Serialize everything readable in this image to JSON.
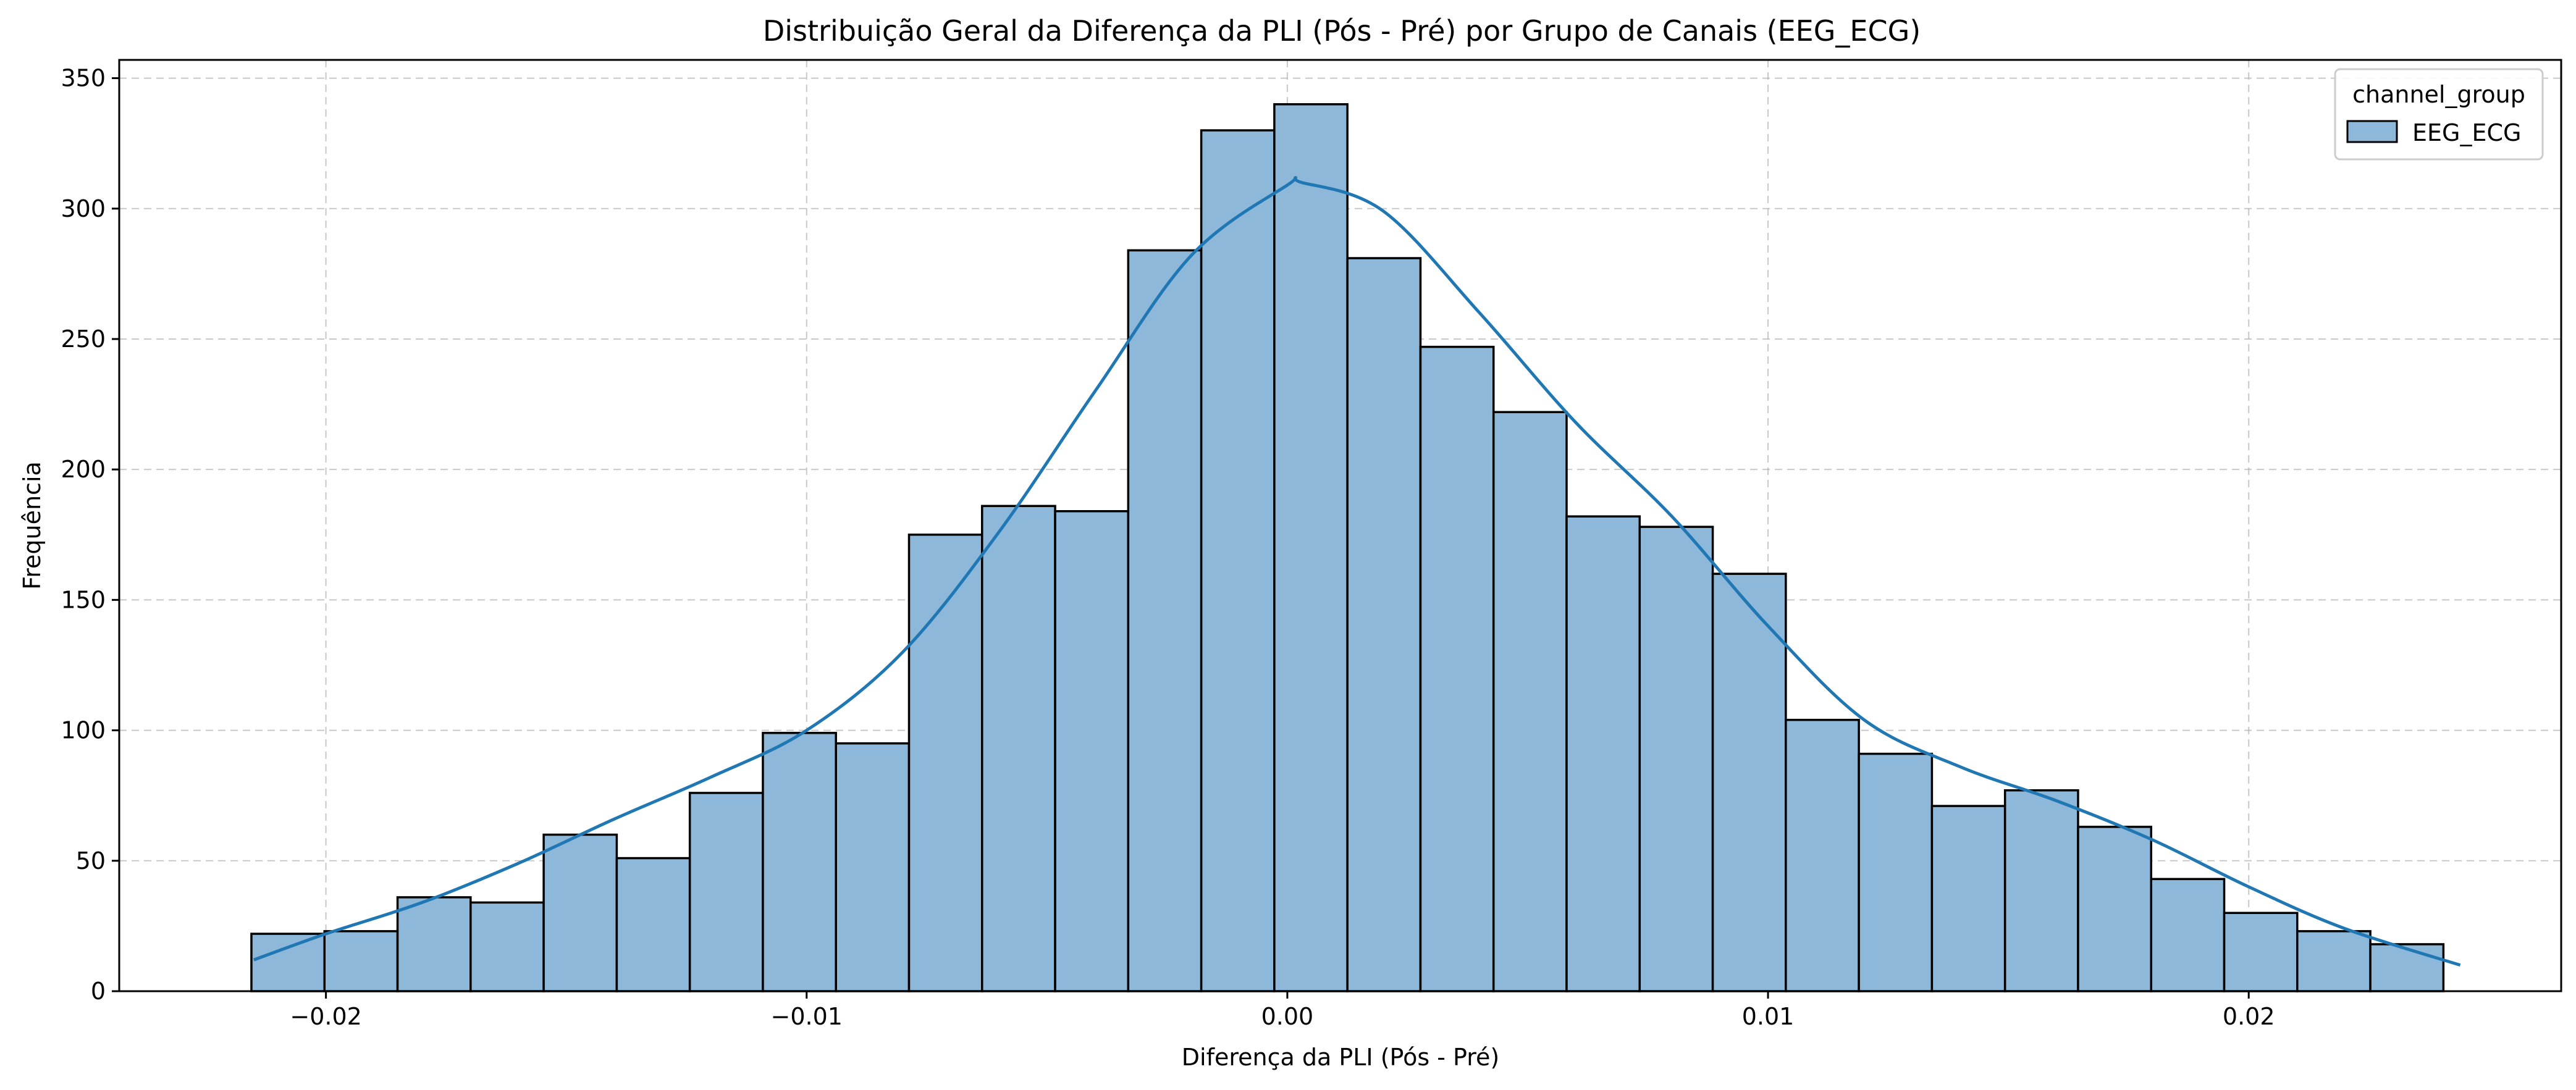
{
  "chart_data": {
    "type": "bar",
    "title": "Distribuição Geral da Diferença da PLI (Pós - Pré) por Grupo de Canais (EEG_ECG)",
    "xlabel": "Diferença da PLI (Pós - Pré)",
    "ylabel": "Frequência",
    "xlim": [
      -0.0243,
      0.0265
    ],
    "ylim": [
      0,
      357
    ],
    "xticks": [
      -0.02,
      -0.01,
      0.0,
      0.01,
      0.02
    ],
    "xtick_labels": [
      "−0.02",
      "−0.01",
      "0.00",
      "0.01",
      "0.02"
    ],
    "yticks": [
      0,
      50,
      100,
      150,
      200,
      250,
      300,
      350
    ],
    "ytick_labels": [
      "0",
      "50",
      "100",
      "150",
      "200",
      "250",
      "300",
      "350"
    ],
    "grid": true,
    "legend": {
      "title": "channel_group",
      "placement": "top-right",
      "entries": [
        "EEG_ECG"
      ]
    },
    "bin_start": -0.02155,
    "bin_width": 0.00152,
    "series": [
      {
        "name": "EEG_ECG",
        "color": "#8db8d9",
        "edge_color": "#000000",
        "values": [
          22,
          23,
          36,
          34,
          60,
          51,
          76,
          99,
          95,
          175,
          186,
          184,
          284,
          330,
          340,
          281,
          247,
          222,
          182,
          178,
          160,
          104,
          91,
          71,
          77,
          63,
          43,
          30,
          23,
          18
        ]
      }
    ],
    "kde": {
      "color": "#1f77b4",
      "x": [
        -0.0215,
        -0.02,
        -0.018,
        -0.016,
        -0.014,
        -0.012,
        -0.01,
        -0.008,
        -0.006,
        -0.004,
        -0.002,
        0.0,
        0.0003,
        0.002,
        0.004,
        0.006,
        0.008,
        0.01,
        0.012,
        0.014,
        0.016,
        0.018,
        0.02,
        0.022,
        0.0244
      ],
      "y": [
        12,
        22,
        34,
        49,
        66,
        82,
        100,
        130,
        176,
        230,
        282,
        309,
        310,
        299,
        260,
        218,
        182,
        140,
        104,
        86,
        73,
        58,
        40,
        24,
        10
      ]
    }
  }
}
